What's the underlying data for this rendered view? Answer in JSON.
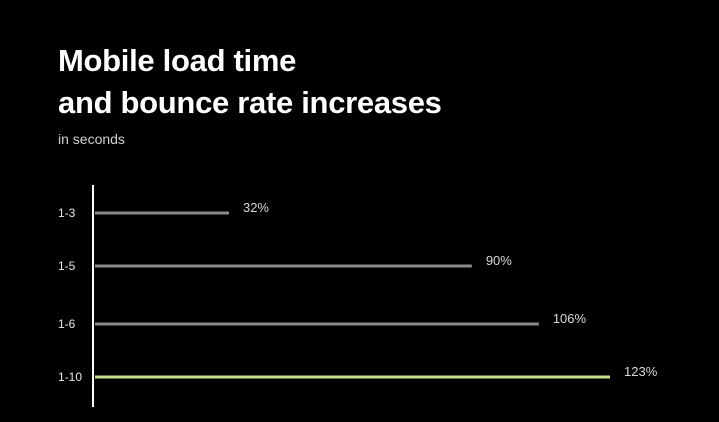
{
  "chart_data": {
    "type": "bar",
    "orientation": "horizontal",
    "title_lines": [
      "Mobile load time",
      "and bounce rate increases"
    ],
    "subtitle": "in seconds",
    "categories": [
      "1-3",
      "1-5",
      "1-6",
      "1-10"
    ],
    "values": [
      32,
      90,
      106,
      123
    ],
    "value_labels": [
      "32%",
      "90%",
      "106%",
      "123%"
    ],
    "xlim": [
      0,
      123
    ],
    "grid": false,
    "colors": {
      "background": "#000000",
      "bar": "#8a8a8a",
      "highlight_bar": "#c8e08a",
      "axis": "#ffffff"
    },
    "highlight_index": 3
  }
}
